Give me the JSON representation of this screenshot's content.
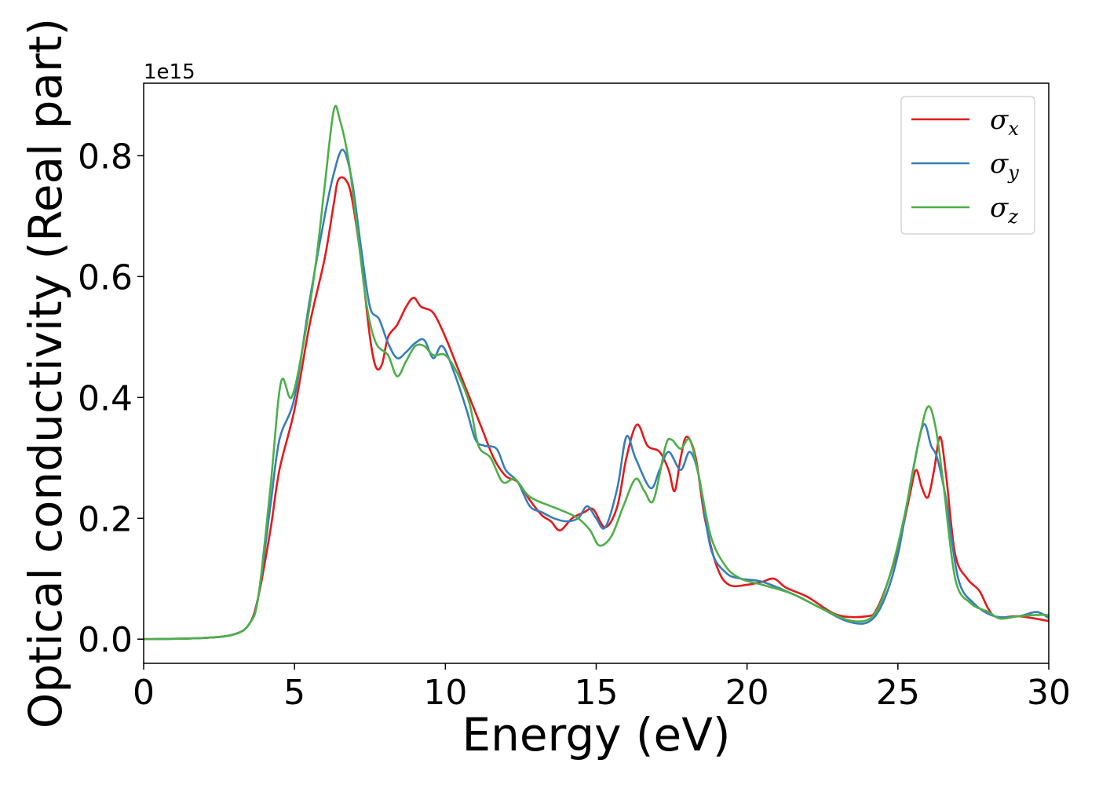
{
  "chart_data": {
    "type": "line",
    "xlabel": "Energy (eV)",
    "ylabel": "Optical conductivity (Real part)",
    "y_offset_label": "1e15",
    "xlim": [
      0,
      30
    ],
    "ylim": [
      -0.04,
      0.92
    ],
    "x_ticks": [
      0,
      5,
      10,
      15,
      20,
      25,
      30
    ],
    "x_tick_labels": [
      "0",
      "5",
      "10",
      "15",
      "20",
      "25",
      "30"
    ],
    "y_ticks": [
      0.0,
      0.2,
      0.4,
      0.6,
      0.8
    ],
    "y_tick_labels": [
      "0.0",
      "0.2",
      "0.4",
      "0.6",
      "0.8"
    ],
    "grid": false,
    "legend_position": "top-right",
    "series": [
      {
        "name": "σx",
        "base": "σ",
        "sub": "x",
        "color": "#e41a1c",
        "points": [
          [
            0,
            0
          ],
          [
            2,
            0.002
          ],
          [
            3,
            0.008
          ],
          [
            3.5,
            0.025
          ],
          [
            3.8,
            0.07
          ],
          [
            4.2,
            0.18
          ],
          [
            4.5,
            0.28
          ],
          [
            5.0,
            0.38
          ],
          [
            5.5,
            0.52
          ],
          [
            6.0,
            0.63
          ],
          [
            6.3,
            0.72
          ],
          [
            6.45,
            0.76
          ],
          [
            6.7,
            0.76
          ],
          [
            6.9,
            0.73
          ],
          [
            7.2,
            0.63
          ],
          [
            7.5,
            0.5
          ],
          [
            7.7,
            0.45
          ],
          [
            7.9,
            0.455
          ],
          [
            8.1,
            0.5
          ],
          [
            8.4,
            0.52
          ],
          [
            8.7,
            0.55
          ],
          [
            8.95,
            0.565
          ],
          [
            9.2,
            0.55
          ],
          [
            9.6,
            0.54
          ],
          [
            10.0,
            0.5
          ],
          [
            10.4,
            0.45
          ],
          [
            10.8,
            0.4
          ],
          [
            11.2,
            0.35
          ],
          [
            11.6,
            0.3
          ],
          [
            12.0,
            0.27
          ],
          [
            12.4,
            0.26
          ],
          [
            12.8,
            0.23
          ],
          [
            13.2,
            0.205
          ],
          [
            13.5,
            0.195
          ],
          [
            13.8,
            0.18
          ],
          [
            14.2,
            0.2
          ],
          [
            14.6,
            0.21
          ],
          [
            14.9,
            0.215
          ],
          [
            15.3,
            0.185
          ],
          [
            15.7,
            0.22
          ],
          [
            16.0,
            0.3
          ],
          [
            16.35,
            0.355
          ],
          [
            16.7,
            0.32
          ],
          [
            17.1,
            0.31
          ],
          [
            17.4,
            0.28
          ],
          [
            17.6,
            0.245
          ],
          [
            17.8,
            0.3
          ],
          [
            18.0,
            0.335
          ],
          [
            18.3,
            0.3
          ],
          [
            18.6,
            0.2
          ],
          [
            19.0,
            0.12
          ],
          [
            19.4,
            0.09
          ],
          [
            20.0,
            0.09
          ],
          [
            20.5,
            0.095
          ],
          [
            20.9,
            0.1
          ],
          [
            21.3,
            0.085
          ],
          [
            22.0,
            0.07
          ],
          [
            23.0,
            0.04
          ],
          [
            24.0,
            0.038
          ],
          [
            24.3,
            0.05
          ],
          [
            24.7,
            0.1
          ],
          [
            25.1,
            0.17
          ],
          [
            25.4,
            0.24
          ],
          [
            25.6,
            0.28
          ],
          [
            25.8,
            0.25
          ],
          [
            26.0,
            0.235
          ],
          [
            26.2,
            0.28
          ],
          [
            26.4,
            0.335
          ],
          [
            26.6,
            0.27
          ],
          [
            26.9,
            0.14
          ],
          [
            27.3,
            0.1
          ],
          [
            27.7,
            0.08
          ],
          [
            28.0,
            0.05
          ],
          [
            28.3,
            0.036
          ],
          [
            29.0,
            0.038
          ],
          [
            30.0,
            0.03
          ]
        ]
      },
      {
        "name": "σy",
        "base": "σ",
        "sub": "y",
        "color": "#377eb8",
        "points": [
          [
            0,
            0
          ],
          [
            2,
            0.002
          ],
          [
            3,
            0.008
          ],
          [
            3.5,
            0.025
          ],
          [
            3.8,
            0.07
          ],
          [
            4.2,
            0.22
          ],
          [
            4.5,
            0.33
          ],
          [
            5.0,
            0.4
          ],
          [
            5.5,
            0.56
          ],
          [
            6.0,
            0.7
          ],
          [
            6.3,
            0.77
          ],
          [
            6.6,
            0.81
          ],
          [
            6.9,
            0.76
          ],
          [
            7.2,
            0.65
          ],
          [
            7.5,
            0.55
          ],
          [
            7.8,
            0.53
          ],
          [
            8.1,
            0.49
          ],
          [
            8.4,
            0.465
          ],
          [
            8.7,
            0.475
          ],
          [
            9.0,
            0.49
          ],
          [
            9.3,
            0.495
          ],
          [
            9.6,
            0.465
          ],
          [
            9.9,
            0.485
          ],
          [
            10.3,
            0.44
          ],
          [
            10.7,
            0.38
          ],
          [
            11.0,
            0.33
          ],
          [
            11.3,
            0.32
          ],
          [
            11.7,
            0.315
          ],
          [
            12.0,
            0.28
          ],
          [
            12.4,
            0.26
          ],
          [
            12.8,
            0.22
          ],
          [
            13.2,
            0.21
          ],
          [
            13.6,
            0.2
          ],
          [
            14.0,
            0.195
          ],
          [
            14.4,
            0.2
          ],
          [
            14.7,
            0.22
          ],
          [
            15.0,
            0.2
          ],
          [
            15.3,
            0.185
          ],
          [
            15.7,
            0.25
          ],
          [
            16.0,
            0.335
          ],
          [
            16.3,
            0.3
          ],
          [
            16.8,
            0.25
          ],
          [
            17.1,
            0.28
          ],
          [
            17.4,
            0.31
          ],
          [
            17.8,
            0.28
          ],
          [
            18.1,
            0.31
          ],
          [
            18.4,
            0.27
          ],
          [
            18.8,
            0.15
          ],
          [
            19.3,
            0.11
          ],
          [
            19.8,
            0.1
          ],
          [
            20.5,
            0.095
          ],
          [
            21.5,
            0.075
          ],
          [
            22.5,
            0.05
          ],
          [
            23.3,
            0.03
          ],
          [
            24.0,
            0.028
          ],
          [
            24.5,
            0.06
          ],
          [
            25.0,
            0.14
          ],
          [
            25.5,
            0.28
          ],
          [
            25.85,
            0.355
          ],
          [
            26.1,
            0.32
          ],
          [
            26.3,
            0.3
          ],
          [
            26.6,
            0.23
          ],
          [
            27.0,
            0.1
          ],
          [
            27.5,
            0.06
          ],
          [
            28.2,
            0.038
          ],
          [
            29.0,
            0.038
          ],
          [
            29.6,
            0.045
          ],
          [
            30.0,
            0.035
          ]
        ]
      },
      {
        "name": "σz",
        "base": "σ",
        "sub": "z",
        "color": "#4daf4a",
        "points": [
          [
            0,
            0
          ],
          [
            2,
            0.002
          ],
          [
            3,
            0.008
          ],
          [
            3.5,
            0.025
          ],
          [
            3.8,
            0.07
          ],
          [
            4.2,
            0.25
          ],
          [
            4.55,
            0.425
          ],
          [
            4.9,
            0.4
          ],
          [
            5.3,
            0.49
          ],
          [
            5.7,
            0.62
          ],
          [
            6.0,
            0.75
          ],
          [
            6.3,
            0.875
          ],
          [
            6.5,
            0.86
          ],
          [
            6.8,
            0.79
          ],
          [
            7.1,
            0.67
          ],
          [
            7.4,
            0.55
          ],
          [
            7.7,
            0.49
          ],
          [
            8.1,
            0.47
          ],
          [
            8.4,
            0.435
          ],
          [
            8.7,
            0.46
          ],
          [
            9.0,
            0.485
          ],
          [
            9.3,
            0.485
          ],
          [
            9.6,
            0.47
          ],
          [
            10.0,
            0.47
          ],
          [
            10.4,
            0.44
          ],
          [
            10.8,
            0.39
          ],
          [
            11.1,
            0.32
          ],
          [
            11.5,
            0.3
          ],
          [
            11.9,
            0.26
          ],
          [
            12.3,
            0.265
          ],
          [
            12.7,
            0.24
          ],
          [
            13.0,
            0.23
          ],
          [
            13.5,
            0.22
          ],
          [
            14.0,
            0.21
          ],
          [
            14.4,
            0.2
          ],
          [
            14.8,
            0.18
          ],
          [
            15.1,
            0.155
          ],
          [
            15.5,
            0.17
          ],
          [
            15.9,
            0.22
          ],
          [
            16.3,
            0.265
          ],
          [
            16.6,
            0.245
          ],
          [
            16.9,
            0.23
          ],
          [
            17.3,
            0.32
          ],
          [
            17.5,
            0.33
          ],
          [
            17.8,
            0.315
          ],
          [
            18.1,
            0.33
          ],
          [
            18.4,
            0.27
          ],
          [
            18.8,
            0.17
          ],
          [
            19.3,
            0.12
          ],
          [
            19.8,
            0.1
          ],
          [
            20.5,
            0.09
          ],
          [
            21.5,
            0.075
          ],
          [
            22.5,
            0.05
          ],
          [
            23.5,
            0.03
          ],
          [
            24.2,
            0.04
          ],
          [
            24.7,
            0.1
          ],
          [
            25.2,
            0.2
          ],
          [
            25.7,
            0.33
          ],
          [
            26.0,
            0.385
          ],
          [
            26.25,
            0.35
          ],
          [
            26.5,
            0.26
          ],
          [
            26.9,
            0.1
          ],
          [
            27.4,
            0.06
          ],
          [
            28.0,
            0.045
          ],
          [
            28.4,
            0.034
          ],
          [
            29.0,
            0.038
          ],
          [
            29.6,
            0.04
          ],
          [
            30.0,
            0.04
          ]
        ]
      }
    ]
  }
}
